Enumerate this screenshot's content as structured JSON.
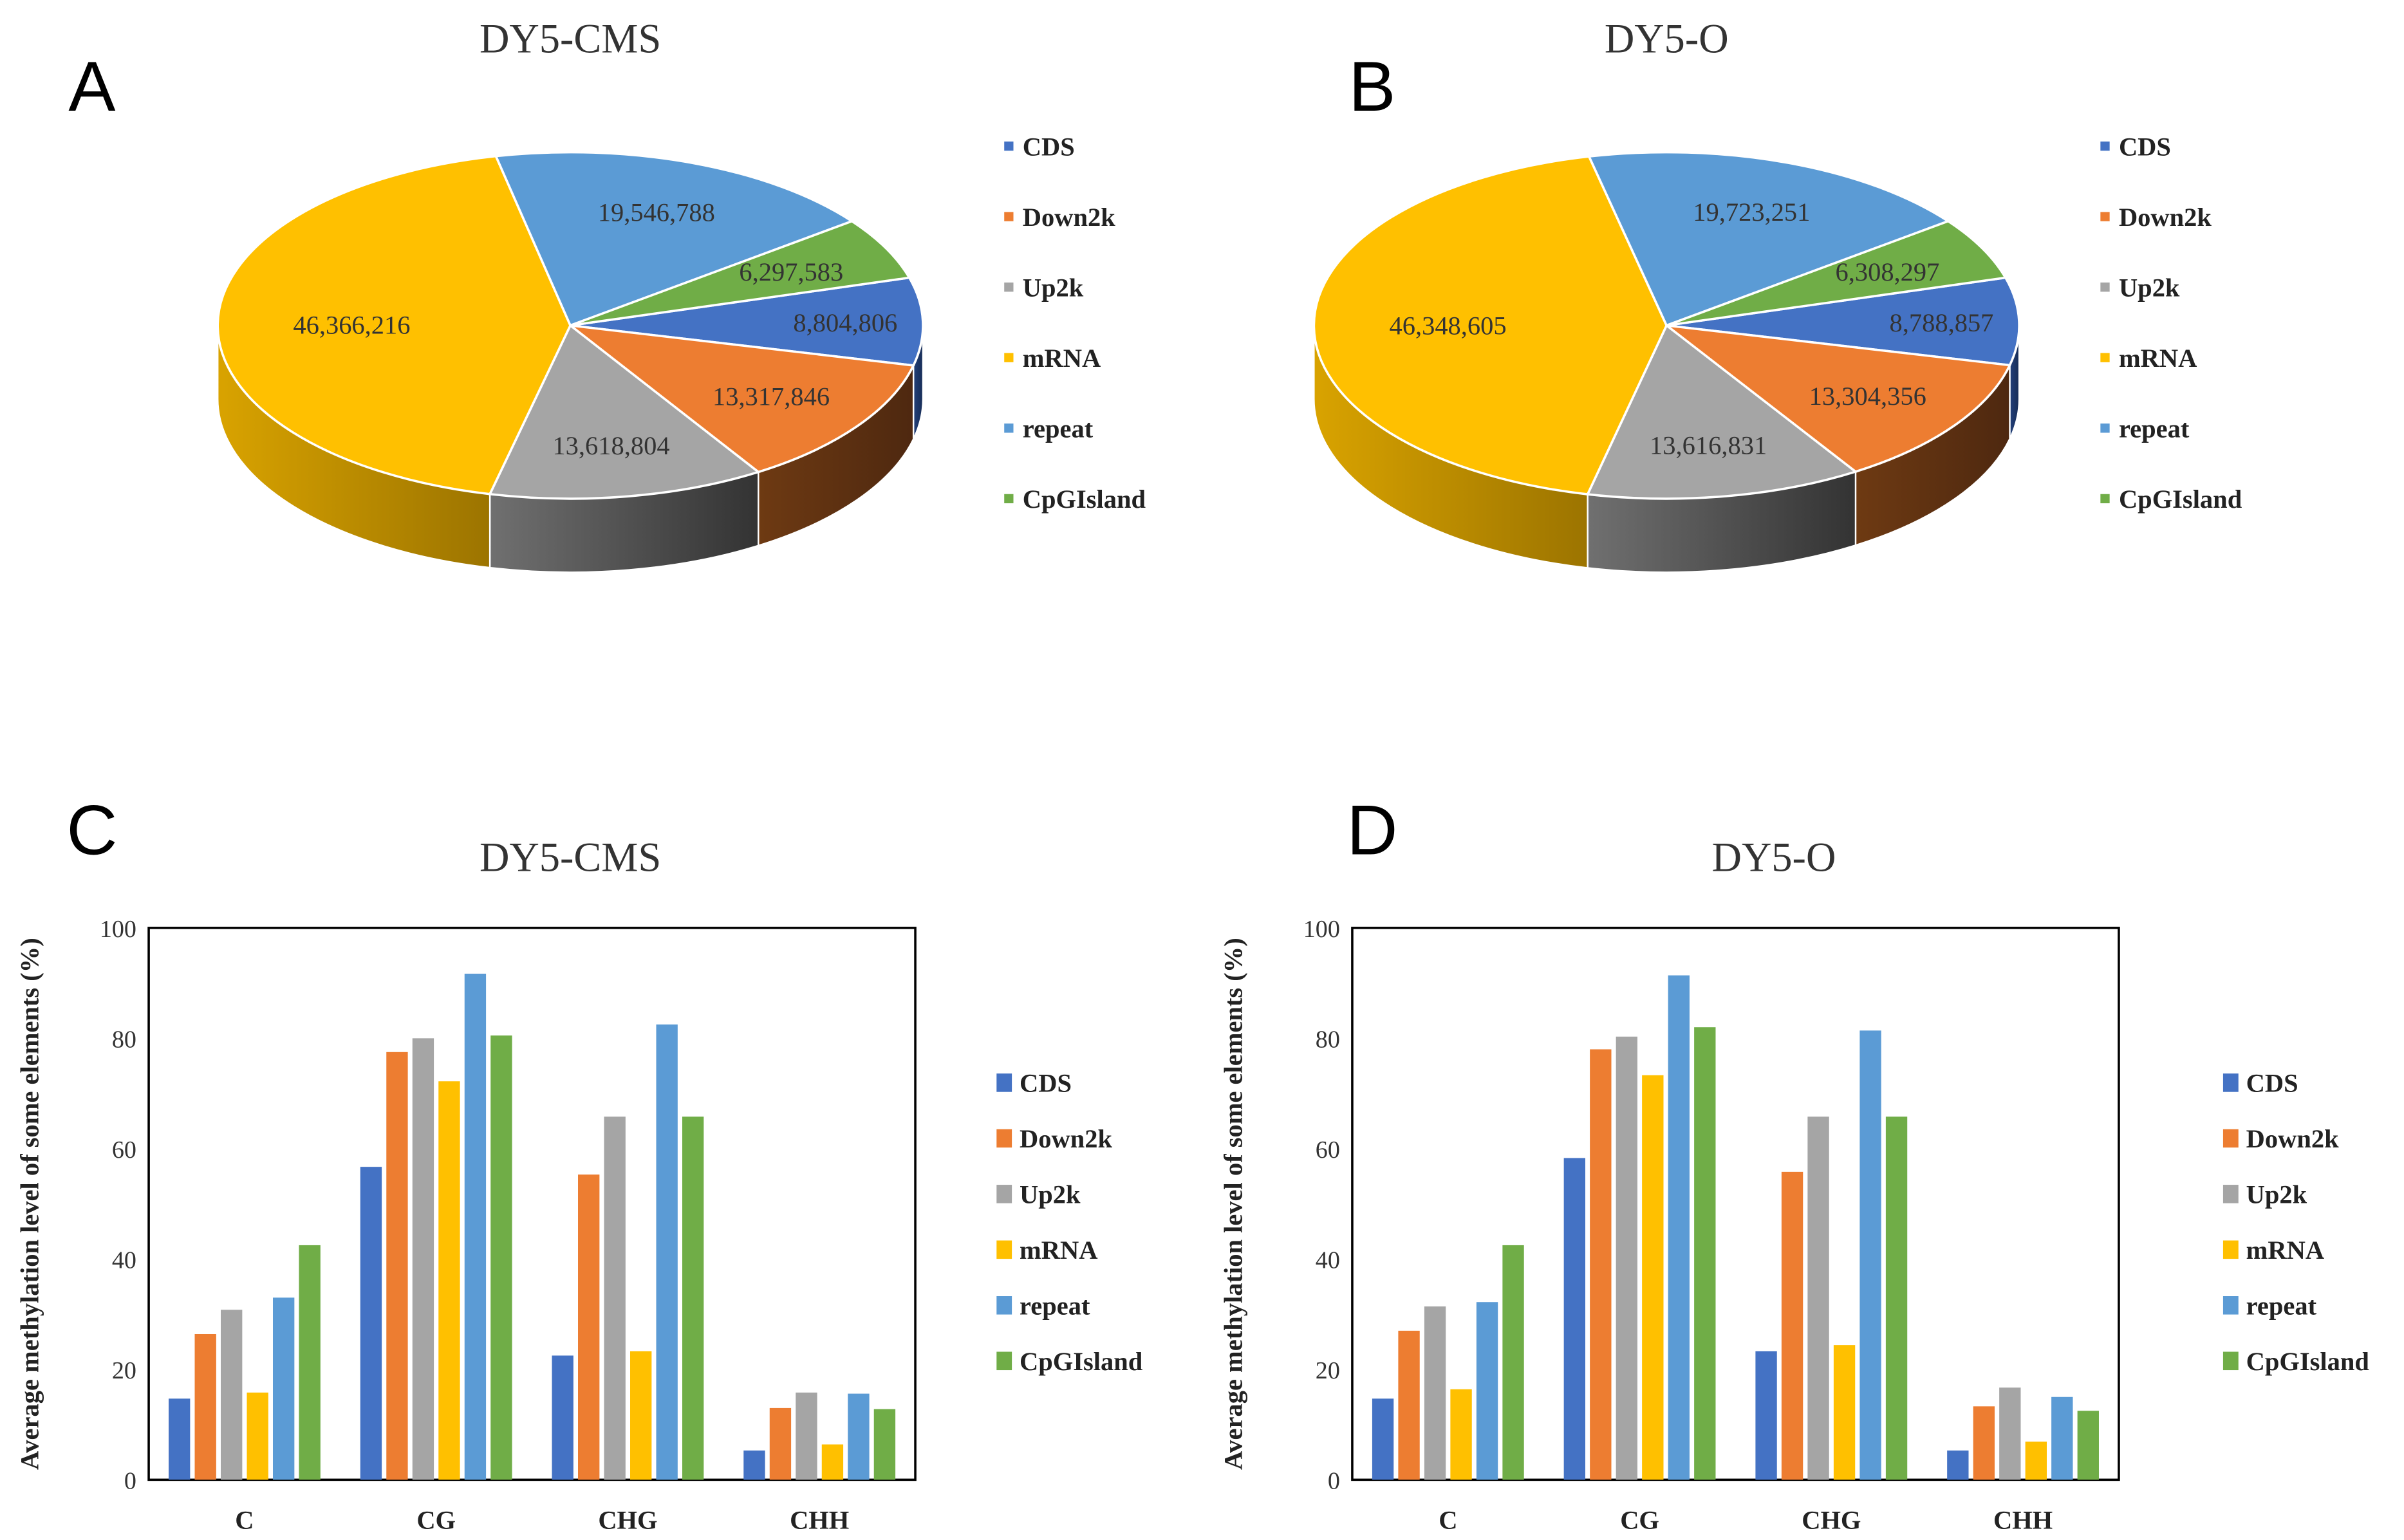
{
  "colors": {
    "CDS": "#4472C4",
    "Down2k": "#ED7D31",
    "Up2k": "#A5A5A5",
    "mRNA": "#FFC000",
    "repeat": "#5B9BD5",
    "CpGIsland": "#70AD47"
  },
  "chart_data": [
    {
      "type": "pie",
      "panel": "A",
      "title": "DY5-CMS",
      "categories": [
        "CDS",
        "Down2k",
        "Up2k",
        "mRNA",
        "repeat",
        "CpGIsland"
      ],
      "values": [
        8804806,
        13317846,
        13618804,
        46366216,
        19546788,
        6297583
      ],
      "labels": [
        "8,804,806",
        "13,317,846",
        "13,618,804",
        "46,366,216",
        "19,546,788",
        "6,297,583"
      ],
      "legend": [
        "CDS",
        "Down2k",
        "Up2k",
        "mRNA",
        "repeat",
        "CpGIsland"
      ],
      "legend_position": "right"
    },
    {
      "type": "pie",
      "panel": "B",
      "title": "DY5-O",
      "categories": [
        "CDS",
        "Down2k",
        "Up2k",
        "mRNA",
        "repeat",
        "CpGIsland"
      ],
      "values": [
        8788857,
        13304356,
        13616831,
        46348605,
        19723251,
        6308297
      ],
      "labels": [
        "8,788,857",
        "13,304,356",
        "13,616,831",
        "46,348,605",
        "19,723,251",
        "6,308,297"
      ],
      "legend": [
        "CDS",
        "Down2k",
        "Up2k",
        "mRNA",
        "repeat",
        "CpGIsland"
      ],
      "legend_position": "right"
    },
    {
      "type": "bar",
      "panel": "C",
      "title": "DY5-CMS",
      "xlabel": "",
      "ylabel": "Average methylation level of some elements (%)",
      "ylim": [
        0,
        100
      ],
      "yticks": [
        "0",
        "20",
        "40",
        "60",
        "80",
        "100"
      ],
      "categories": [
        "C",
        "CG",
        "CHG",
        "CHH"
      ],
      "series": [
        {
          "name": "CDS",
          "values": [
            14.7,
            56.7,
            22.5,
            5.3
          ]
        },
        {
          "name": "Down2k",
          "values": [
            26.4,
            77.5,
            55.3,
            13.0
          ]
        },
        {
          "name": "Up2k",
          "values": [
            30.8,
            80.0,
            65.8,
            15.8
          ]
        },
        {
          "name": "mRNA",
          "values": [
            15.8,
            72.2,
            23.3,
            6.4
          ]
        },
        {
          "name": "repeat",
          "values": [
            33.0,
            91.7,
            82.5,
            15.6
          ]
        },
        {
          "name": "CpGIsland",
          "values": [
            42.5,
            80.5,
            65.8,
            12.8
          ]
        }
      ],
      "legend": [
        "CDS",
        "Down2k",
        "Up2k",
        "mRNA",
        "repeat",
        "CpGIsland"
      ],
      "legend_position": "right",
      "grid": false
    },
    {
      "type": "bar",
      "panel": "D",
      "title": "DY5-O",
      "xlabel": "",
      "ylabel": "Average methylation level of some elements (%)",
      "ylim": [
        0,
        100
      ],
      "yticks": [
        "0",
        "20",
        "40",
        "60",
        "80",
        "100"
      ],
      "categories": [
        "C",
        "CG",
        "CHG",
        "CHH"
      ],
      "series": [
        {
          "name": "CDS",
          "values": [
            14.7,
            58.3,
            23.3,
            5.3
          ]
        },
        {
          "name": "Down2k",
          "values": [
            27.0,
            78.0,
            55.8,
            13.3
          ]
        },
        {
          "name": "Up2k",
          "values": [
            31.4,
            80.3,
            65.8,
            16.7
          ]
        },
        {
          "name": "mRNA",
          "values": [
            16.4,
            73.3,
            24.4,
            6.9
          ]
        },
        {
          "name": "repeat",
          "values": [
            32.2,
            91.4,
            81.4,
            15.0
          ]
        },
        {
          "name": "CpGIsland",
          "values": [
            42.5,
            82.0,
            65.8,
            12.5
          ]
        }
      ],
      "legend": [
        "CDS",
        "Down2k",
        "Up2k",
        "mRNA",
        "repeat",
        "CpGIsland"
      ],
      "legend_position": "right",
      "grid": false
    }
  ]
}
